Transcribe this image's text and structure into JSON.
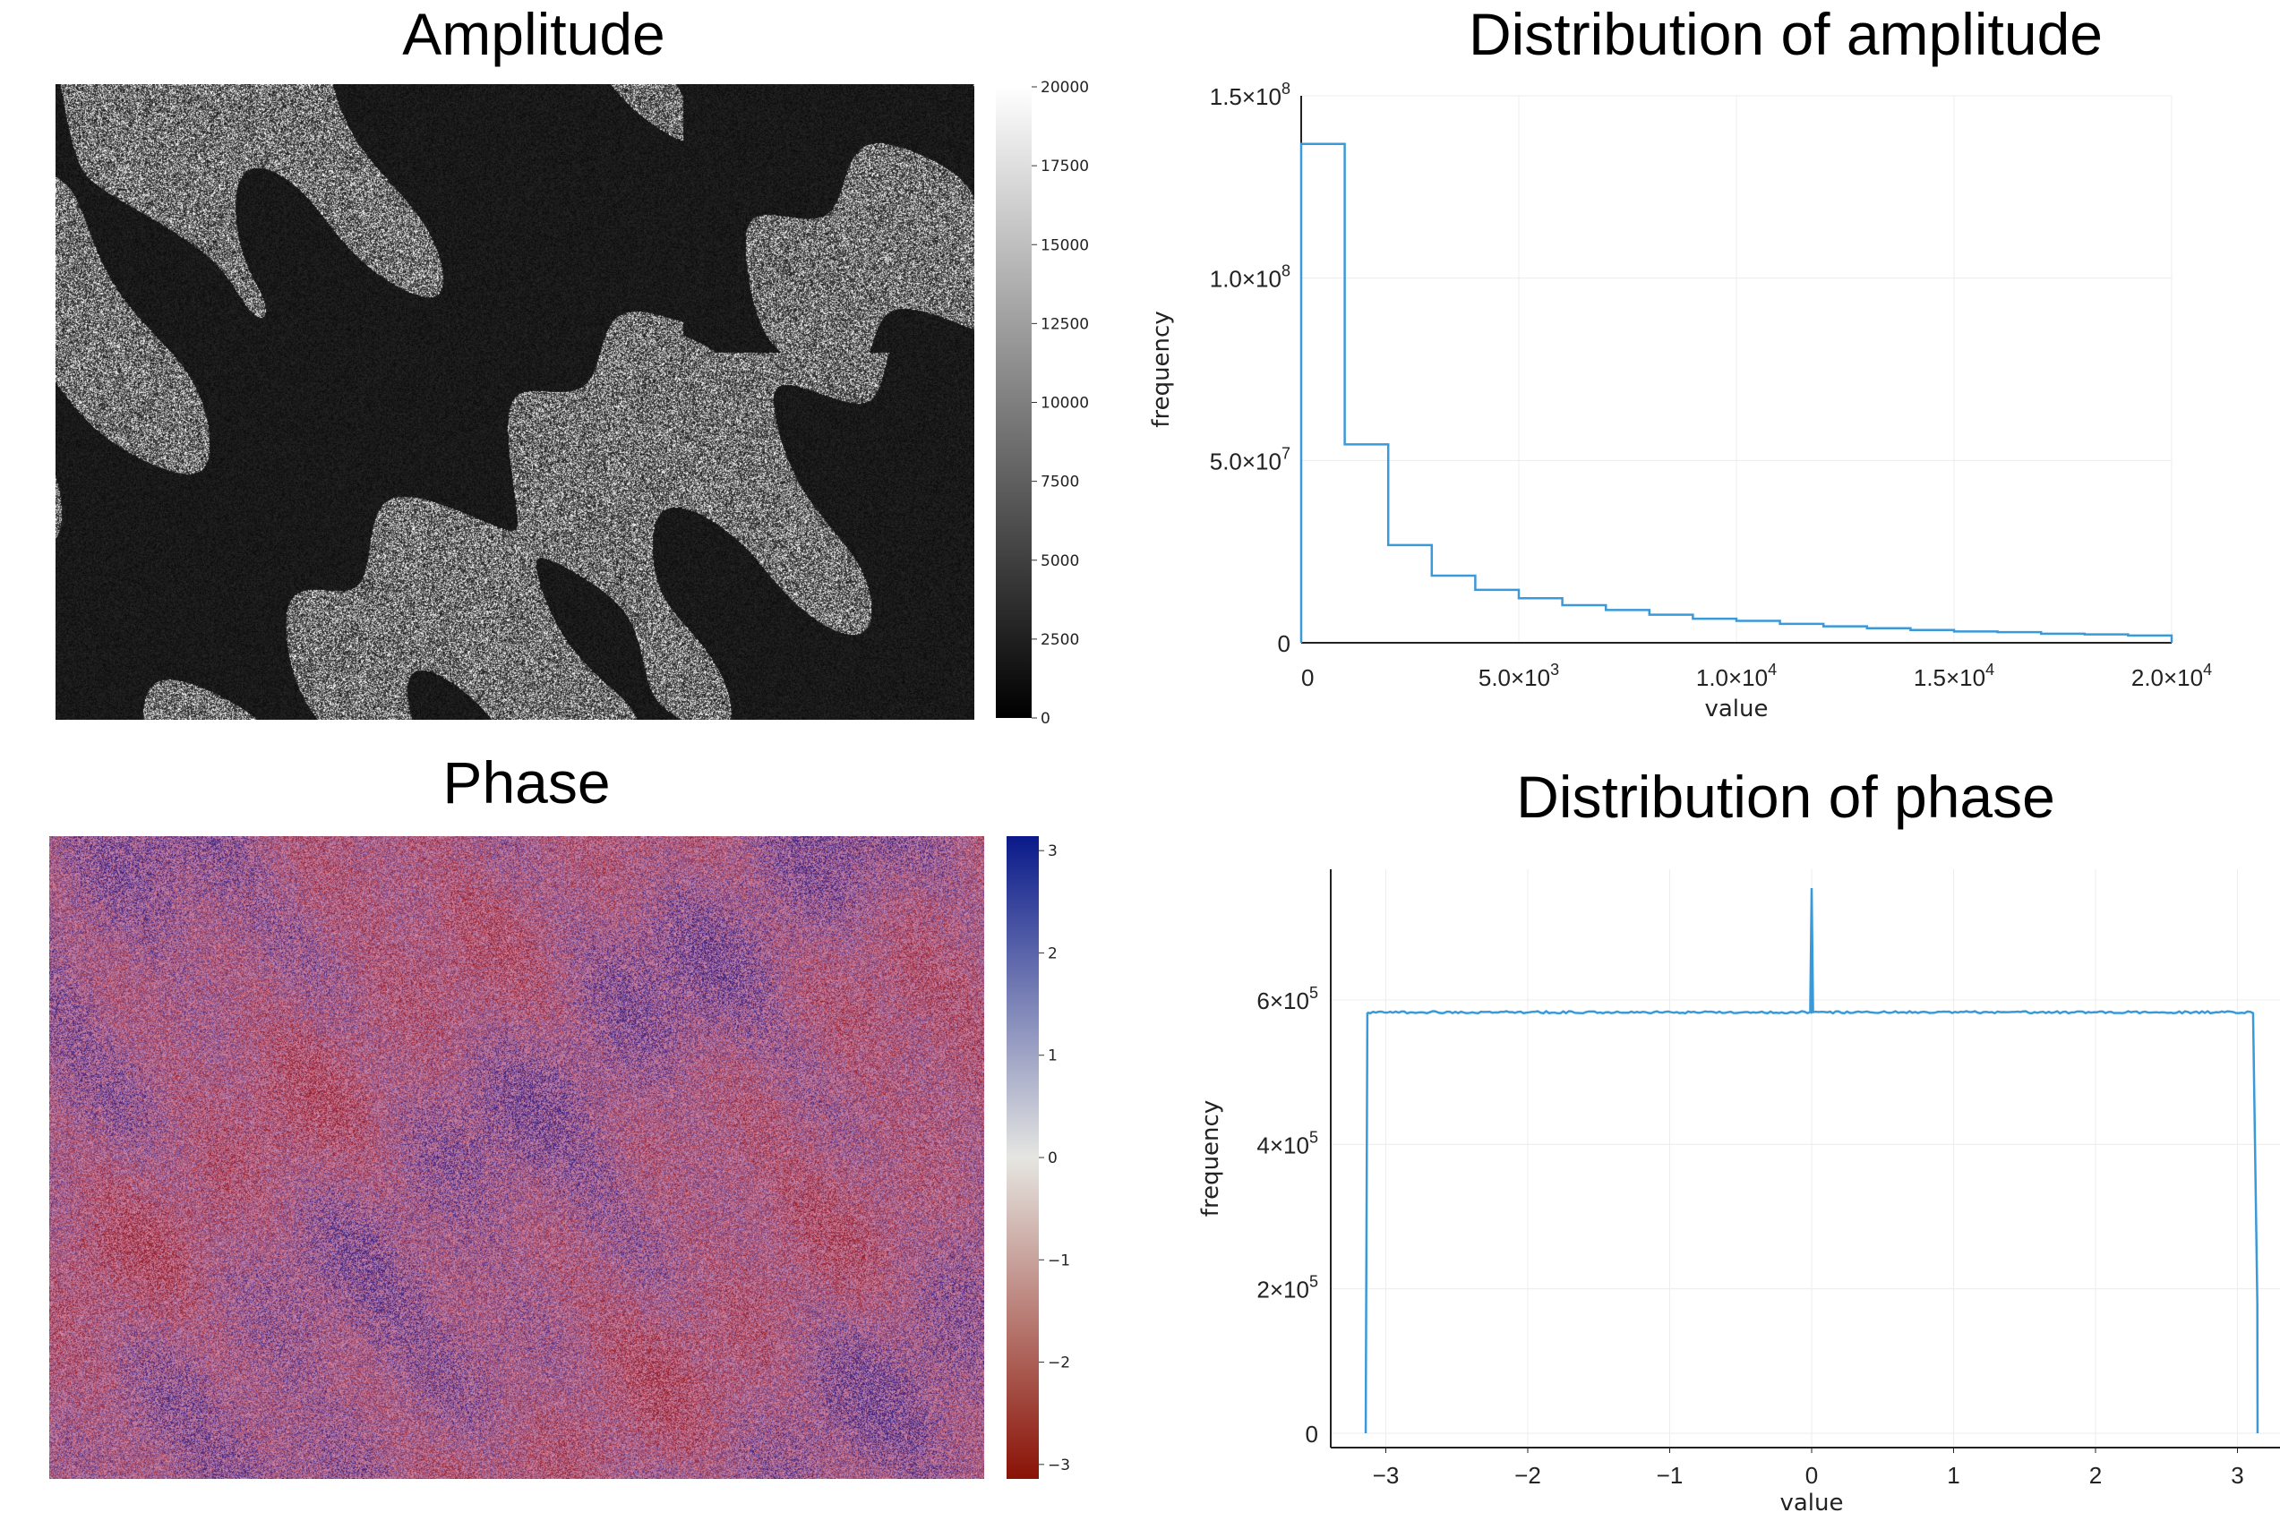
{
  "chart_data": [
    {
      "type": "heatmap",
      "title": "Amplitude",
      "colormap": "grayscale",
      "colorbar": {
        "range": [
          0,
          20000
        ],
        "ticks": [
          "0",
          "2500",
          "5000",
          "7500",
          "10000",
          "12500",
          "15000",
          "17500",
          "20000"
        ]
      }
    },
    {
      "type": "bar",
      "title": "Distribution of amplitude",
      "xlabel": "value",
      "ylabel": "frequency",
      "xlim": [
        0,
        20000
      ],
      "ylim": [
        0,
        150000000
      ],
      "grid": true,
      "bin_width": 1000,
      "bin_edges_start": 0,
      "values": [
        136800000,
        54400000,
        26800000,
        18400000,
        14500000,
        12200000,
        10300000,
        9000000,
        7700000,
        6600000,
        6000000,
        5200000,
        4500000,
        4000000,
        3500000,
        3100000,
        2900000,
        2500000,
        2300000,
        2000000
      ],
      "xticks": [
        {
          "v": 0,
          "label": "0"
        },
        {
          "v": 5000,
          "label": "5.0×10",
          "exp": "3"
        },
        {
          "v": 10000,
          "label": "1.0×10",
          "exp": "4"
        },
        {
          "v": 15000,
          "label": "1.5×10",
          "exp": "4"
        },
        {
          "v": 20000,
          "label": "2.0×10",
          "exp": "4"
        }
      ],
      "yticks": [
        {
          "v": 0,
          "label": "0"
        },
        {
          "v": 50000000,
          "label": "5.0×10",
          "exp": "7"
        },
        {
          "v": 100000000,
          "label": "1.0×10",
          "exp": "8"
        },
        {
          "v": 150000000,
          "label": "1.5×10",
          "exp": "8"
        }
      ],
      "color": "#3a9ad9"
    },
    {
      "type": "heatmap",
      "title": "Phase",
      "colormap": "red-white-blue",
      "colorbar": {
        "range": [
          -3.14159,
          3.14159
        ],
        "ticks": [
          "−3",
          "−2",
          "−1",
          "0",
          "1",
          "2",
          "3"
        ]
      }
    },
    {
      "type": "line",
      "title": "Distribution of phase",
      "xlabel": "value",
      "ylabel": "frequency",
      "xlim": [
        -3.35,
        3.2
      ],
      "ylim": [
        -20000,
        790000
      ],
      "grid": true,
      "x": [
        -3.1416,
        -3.14,
        -3.13,
        -3.1,
        0,
        0.001,
        0.01,
        3.1,
        3.13,
        3.14,
        3.1416
      ],
      "y": [
        0,
        95000,
        583000,
        583000,
        755000,
        583000,
        583000,
        583000,
        583000,
        180000,
        0
      ],
      "xticks": [
        {
          "v": -3,
          "label": "−3"
        },
        {
          "v": -2,
          "label": "−2"
        },
        {
          "v": -1,
          "label": "−1"
        },
        {
          "v": 0,
          "label": "0"
        },
        {
          "v": 1,
          "label": "1"
        },
        {
          "v": 2,
          "label": "2"
        },
        {
          "v": 3,
          "label": "3"
        }
      ],
      "yticks": [
        {
          "v": 0,
          "label": "0"
        },
        {
          "v": 200000,
          "label": "2×10",
          "exp": "5"
        },
        {
          "v": 400000,
          "label": "4×10",
          "exp": "5"
        },
        {
          "v": 600000,
          "label": "6×10",
          "exp": "5"
        }
      ],
      "color": "#3a9ad9"
    }
  ]
}
